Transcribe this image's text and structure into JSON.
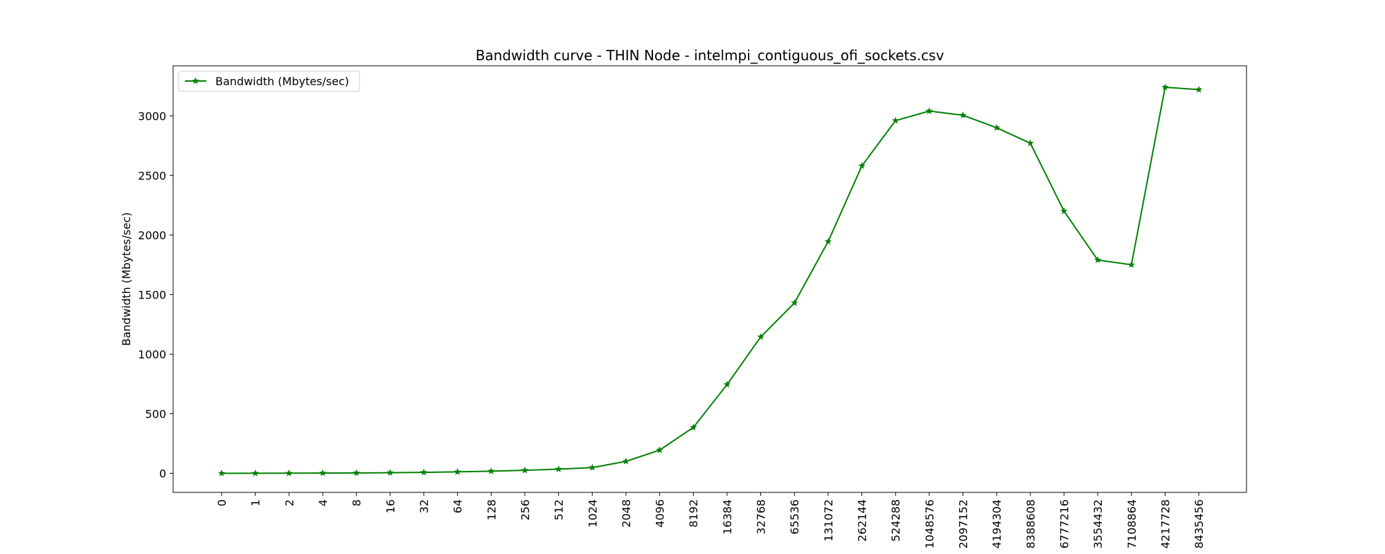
{
  "chart_data": {
    "type": "line",
    "title": "Bandwidth curve - THIN Node - intelmpi_contiguous_ofi_sockets.csv",
    "xlabel": "",
    "ylabel": "Bandwidth (Mbytes/sec)",
    "categories": [
      "0",
      "1",
      "2",
      "4",
      "8",
      "16",
      "32",
      "64",
      "128",
      "256",
      "512",
      "1024",
      "2048",
      "4096",
      "8192",
      "16384",
      "32768",
      "65536",
      "131072",
      "262144",
      "524288",
      "1048576",
      "2097152",
      "4194304",
      "8388608",
      "6777216",
      "3554432",
      "7108864",
      "4217728",
      "8435456"
    ],
    "series": [
      {
        "name": "Bandwidth (Mbytes/sec)",
        "color": "#008000",
        "marker": "star",
        "values": [
          0,
          0.5,
          1,
          2,
          3,
          5,
          8,
          12,
          18,
          25,
          35,
          48,
          100,
          195,
          385,
          745,
          1145,
          1430,
          1945,
          2580,
          2960,
          3040,
          3005,
          2900,
          2770,
          2200,
          1790,
          1750,
          3240,
          3220
        ]
      }
    ],
    "ylim": [
      -160,
      3420
    ],
    "yticks": [
      0,
      500,
      1000,
      1500,
      2000,
      2500,
      3000
    ],
    "grid": false,
    "legend": "upper-left"
  }
}
